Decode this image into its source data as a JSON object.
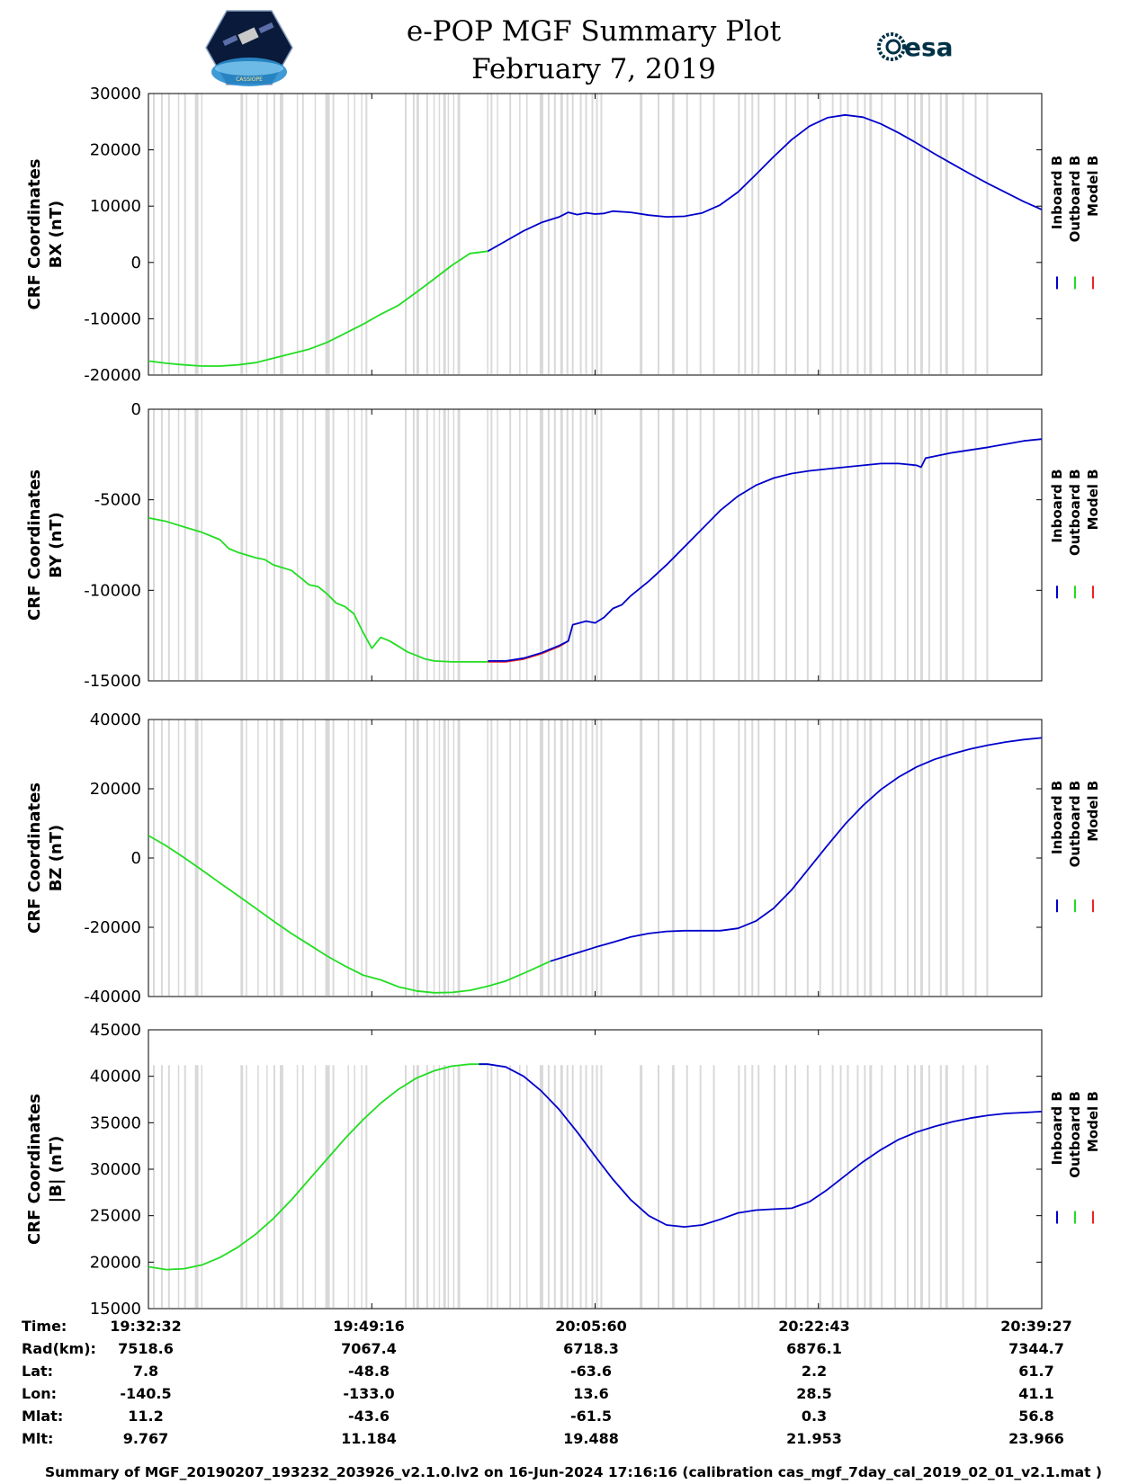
{
  "header": {
    "title": "e-POP MGF Summary Plot",
    "date": "February 7, 2019",
    "left_logo_caption": "CASSIOPE",
    "right_logo_text": "esa"
  },
  "colors": {
    "inboard": "#0000cc",
    "outboard": "#22dd22",
    "model": "#ee2222",
    "shading": "#d9d9d9",
    "esa_blue": "#003247"
  },
  "chart_data": [
    {
      "type": "line",
      "id": "bx",
      "ylabel_line1": "CRF Coordinates",
      "ylabel_line2": "BX (nT)",
      "ylim": [
        -20000,
        30000
      ],
      "yticks": [
        -20000,
        -10000,
        0,
        10000,
        20000,
        30000
      ],
      "ytick_labels": [
        "-20000",
        "-10000",
        "0",
        "10000",
        "20000",
        "30000"
      ],
      "legend": [
        "Inboard B",
        "Outboard B",
        "Model B"
      ],
      "series": [
        {
          "name": "Outboard B",
          "color": "#22dd22",
          "x": [
            0,
            2,
            4,
            6,
            8,
            10,
            12,
            14,
            16,
            18,
            20,
            22,
            24,
            26,
            28,
            30,
            32,
            34,
            36,
            38
          ],
          "values": [
            -17500,
            -17900,
            -18200,
            -18400,
            -18400,
            -18200,
            -17800,
            -17000,
            -16200,
            -15400,
            -14200,
            -12600,
            -11000,
            -9200,
            -7600,
            -5300,
            -2900,
            -500,
            1600,
            2000
          ]
        },
        {
          "name": "Inboard B",
          "color": "#0000cc",
          "x": [
            38,
            40,
            42,
            44,
            46,
            47,
            48,
            49,
            50,
            51,
            52,
            54,
            56,
            58,
            60,
            62,
            64,
            66,
            68,
            70,
            72,
            74,
            76,
            78,
            80,
            82,
            84,
            86,
            88,
            90,
            92,
            94,
            96,
            98,
            100
          ],
          "values": [
            2000,
            3800,
            5600,
            7100,
            8100,
            8900,
            8500,
            8800,
            8600,
            8700,
            9100,
            8900,
            8400,
            8100,
            8200,
            8800,
            10200,
            12500,
            15600,
            18800,
            21800,
            24200,
            25700,
            26200,
            25800,
            24600,
            23000,
            21200,
            19300,
            17500,
            15700,
            14000,
            12400,
            10800,
            9400
          ]
        }
      ]
    },
    {
      "type": "line",
      "id": "by",
      "ylabel_line1": "CRF Coordinates",
      "ylabel_line2": "BY (nT)",
      "ylim": [
        -15000,
        0
      ],
      "yticks": [
        -15000,
        -10000,
        -5000,
        0
      ],
      "ytick_labels": [
        "-15000",
        "-10000",
        "-5000",
        "0"
      ],
      "legend": [
        "Inboard B",
        "Outboard B",
        "Model B"
      ],
      "series": [
        {
          "name": "Outboard B",
          "color": "#22dd22",
          "x": [
            0,
            2,
            4,
            6,
            8,
            9,
            10,
            12,
            13,
            14,
            16,
            17,
            18,
            19,
            20,
            21,
            22,
            23,
            24,
            25,
            26,
            27,
            28,
            29,
            30,
            31,
            32,
            34,
            36,
            38
          ],
          "values": [
            -6000,
            -6200,
            -6500,
            -6800,
            -7200,
            -7700,
            -7900,
            -8200,
            -8300,
            -8600,
            -8900,
            -9300,
            -9700,
            -9800,
            -10200,
            -10700,
            -10900,
            -11300,
            -12300,
            -13200,
            -12600,
            -12800,
            -13100,
            -13400,
            -13600,
            -13800,
            -13900,
            -13950,
            -13950,
            -13950
          ]
        },
        {
          "name": "Model B",
          "color": "#ee2222",
          "x": [
            38,
            40,
            42,
            44,
            46,
            47
          ],
          "values": [
            -13950,
            -13950,
            -13800,
            -13500,
            -13100,
            -12800
          ]
        },
        {
          "name": "Inboard B",
          "color": "#0000cc",
          "x": [
            38,
            40,
            42,
            44,
            46,
            47,
            47.5,
            49,
            50,
            51,
            52,
            53,
            54,
            56,
            58,
            60,
            62,
            64,
            66,
            68,
            70,
            72,
            74,
            76,
            78,
            80,
            82,
            84,
            86,
            86.5,
            87,
            90,
            94,
            98,
            100
          ],
          "values": [
            -13900,
            -13900,
            -13750,
            -13450,
            -13050,
            -12800,
            -11900,
            -11700,
            -11800,
            -11500,
            -11000,
            -10800,
            -10300,
            -9500,
            -8600,
            -7600,
            -6600,
            -5600,
            -4800,
            -4200,
            -3800,
            -3550,
            -3400,
            -3300,
            -3200,
            -3100,
            -3000,
            -3000,
            -3100,
            -3200,
            -2700,
            -2400,
            -2100,
            -1750,
            -1650
          ]
        }
      ]
    },
    {
      "type": "line",
      "id": "bz",
      "ylabel_line1": "CRF Coordinates",
      "ylabel_line2": "BZ (nT)",
      "ylim": [
        -40000,
        40000
      ],
      "yticks": [
        -40000,
        -20000,
        0,
        20000,
        40000
      ],
      "ytick_labels": [
        "-40000",
        "-20000",
        "0",
        "20000",
        "40000"
      ],
      "legend": [
        "Inboard B",
        "Outboard B",
        "Model B"
      ],
      "series": [
        {
          "name": "Outboard B",
          "color": "#22dd22",
          "x": [
            0,
            2,
            4,
            6,
            8,
            10,
            12,
            14,
            16,
            18,
            20,
            22,
            24,
            26,
            28,
            30,
            32,
            34,
            36,
            38,
            40,
            42,
            44,
            45
          ],
          "values": [
            6500,
            3500,
            100,
            -3500,
            -7200,
            -10800,
            -14500,
            -18200,
            -21800,
            -25000,
            -28300,
            -31200,
            -33800,
            -35200,
            -37200,
            -38400,
            -38900,
            -38800,
            -38200,
            -37000,
            -35500,
            -33300,
            -31000,
            -29800
          ]
        },
        {
          "name": "Inboard B",
          "color": "#0000cc",
          "x": [
            45,
            48,
            50,
            52,
            54,
            56,
            58,
            60,
            62,
            64,
            66,
            68,
            70,
            72,
            74,
            76,
            78,
            80,
            82,
            84,
            86,
            88,
            90,
            92,
            94,
            96,
            98,
            100
          ],
          "values": [
            -29800,
            -27400,
            -25800,
            -24300,
            -22800,
            -21800,
            -21200,
            -21000,
            -21000,
            -21000,
            -20300,
            -18200,
            -14500,
            -9200,
            -2800,
            3600,
            9800,
            15200,
            19800,
            23400,
            26300,
            28500,
            30100,
            31500,
            32600,
            33500,
            34200,
            34700
          ]
        }
      ]
    },
    {
      "type": "line",
      "id": "bmag",
      "ylabel_line1": "CRF Coordinates",
      "ylabel_line2": "|B| (nT)",
      "ylim": [
        15000,
        45000
      ],
      "yticks": [
        15000,
        20000,
        25000,
        30000,
        35000,
        40000,
        45000
      ],
      "ytick_labels": [
        "15000",
        "20000",
        "25000",
        "30000",
        "35000",
        "40000",
        "45000"
      ],
      "legend": [
        "Inboard B",
        "Outboard B",
        "Model B"
      ],
      "series": [
        {
          "name": "Outboard B",
          "color": "#22dd22",
          "x": [
            0,
            2,
            4,
            6,
            8,
            10,
            12,
            14,
            16,
            18,
            20,
            22,
            24,
            26,
            28,
            30,
            32,
            34,
            36,
            37,
            38
          ],
          "values": [
            19500,
            19200,
            19300,
            19700,
            20500,
            21600,
            23000,
            24700,
            26700,
            28900,
            31100,
            33300,
            35300,
            37100,
            38600,
            39800,
            40600,
            41100,
            41300,
            41300,
            41300
          ]
        },
        {
          "name": "Inboard B",
          "color": "#0000cc",
          "x": [
            37,
            38,
            40,
            42,
            44,
            46,
            48,
            50,
            52,
            54,
            56,
            58,
            60,
            62,
            64,
            66,
            68,
            70,
            72,
            74,
            76,
            78,
            80,
            82,
            84,
            86,
            88,
            90,
            92,
            94,
            96,
            98,
            100
          ],
          "values": [
            41300,
            41300,
            41000,
            40000,
            38400,
            36400,
            34000,
            31400,
            28900,
            26700,
            25000,
            24000,
            23800,
            24000,
            24600,
            25300,
            25600,
            25700,
            25800,
            26500,
            27800,
            29300,
            30800,
            32100,
            33200,
            34000,
            34600,
            35100,
            35500,
            35800,
            36000,
            36100,
            36200
          ]
        }
      ]
    }
  ],
  "x_axis": {
    "tick_positions": [
      0,
      25,
      50,
      75,
      100
    ],
    "shaded_intervals": [
      [
        0.5,
        0.7
      ],
      [
        1.4,
        1.6
      ],
      [
        2.2,
        2.4
      ],
      [
        3.3,
        3.4
      ],
      [
        4.0,
        4.2
      ],
      [
        5.2,
        5.6
      ],
      [
        5.9,
        6.0
      ],
      [
        10.3,
        10.6
      ],
      [
        10.9,
        11.0
      ],
      [
        12.2,
        12.3
      ],
      [
        13.2,
        13.3
      ],
      [
        14.0,
        14.2
      ],
      [
        14.7,
        15.1
      ],
      [
        16.6,
        16.7
      ],
      [
        17.2,
        17.4
      ],
      [
        18.6,
        18.7
      ],
      [
        19.8,
        20.3
      ],
      [
        20.6,
        20.8
      ],
      [
        22.3,
        22.4
      ],
      [
        23.0,
        23.1
      ],
      [
        23.8,
        23.9
      ],
      [
        24.3,
        24.5
      ],
      [
        28.7,
        28.9
      ],
      [
        29.6,
        29.8
      ],
      [
        30.0,
        30.3
      ],
      [
        31.1,
        31.3
      ],
      [
        31.9,
        32.0
      ],
      [
        32.5,
        32.6
      ],
      [
        33.0,
        33.3
      ],
      [
        33.5,
        33.6
      ],
      [
        34.1,
        34.2
      ],
      [
        34.6,
        34.9
      ],
      [
        37.9,
        38.0
      ],
      [
        38.3,
        38.5
      ],
      [
        39.0,
        39.1
      ],
      [
        40.4,
        40.6
      ],
      [
        41.5,
        41.6
      ],
      [
        42.3,
        42.4
      ],
      [
        43.8,
        44.2
      ],
      [
        44.7,
        44.9
      ],
      [
        45.4,
        45.6
      ],
      [
        46.1,
        46.4
      ],
      [
        46.8,
        47.0
      ],
      [
        47.4,
        47.6
      ],
      [
        48.3,
        48.5
      ],
      [
        48.9,
        49.1
      ],
      [
        49.6,
        49.8
      ],
      [
        50.1,
        50.3
      ],
      [
        50.6,
        50.8
      ],
      [
        55.0,
        55.3
      ],
      [
        57.0,
        57.2
      ],
      [
        58.6,
        58.9
      ],
      [
        60.2,
        60.4
      ],
      [
        61.7,
        61.9
      ],
      [
        63.2,
        63.4
      ],
      [
        66.0,
        66.2
      ],
      [
        66.7,
        66.9
      ],
      [
        67.5,
        67.7
      ],
      [
        68.2,
        68.4
      ],
      [
        70.0,
        70.2
      ],
      [
        71.3,
        71.5
      ],
      [
        72.3,
        72.5
      ],
      [
        73.7,
        73.9
      ],
      [
        75.1,
        75.3
      ],
      [
        76.5,
        76.7
      ],
      [
        77.4,
        77.6
      ],
      [
        78.2,
        78.4
      ],
      [
        79.3,
        79.5
      ],
      [
        80.1,
        80.3
      ],
      [
        80.7,
        81.0
      ],
      [
        82.0,
        82.2
      ],
      [
        83.5,
        83.7
      ],
      [
        84.9,
        85.1
      ],
      [
        85.7,
        85.9
      ],
      [
        86.4,
        86.7
      ],
      [
        87.3,
        87.5
      ],
      [
        88.6,
        88.8
      ],
      [
        89.2,
        89.5
      ],
      [
        91.1,
        91.3
      ],
      [
        92.5,
        92.7
      ],
      [
        93.8,
        94.0
      ]
    ]
  },
  "info_table": {
    "labels": [
      "Time:",
      "Rad(km):",
      "Lat:",
      "Lon:",
      "Mlat:",
      "Mlt:"
    ],
    "columns": [
      [
        "19:32:32",
        "7518.6",
        "7.8",
        "-140.5",
        "11.2",
        "9.767"
      ],
      [
        "19:49:16",
        "7067.4",
        "-48.8",
        "-133.0",
        "-43.6",
        "11.184"
      ],
      [
        "20:05:60",
        "6718.3",
        "-63.6",
        "13.6",
        "-61.5",
        "19.488"
      ],
      [
        "20:22:43",
        "6876.1",
        "2.2",
        "28.5",
        "0.3",
        "21.953"
      ],
      [
        "20:39:27",
        "7344.7",
        "61.7",
        "41.1",
        "56.8",
        "23.966"
      ]
    ]
  },
  "footer": "Summary of MGF_20190207_193232_203926_v2.1.0.lv2 on 16-Jun-2024 17:16:16 (calibration cas_mgf_7day_cal_2019_02_01_v2.1.mat )"
}
